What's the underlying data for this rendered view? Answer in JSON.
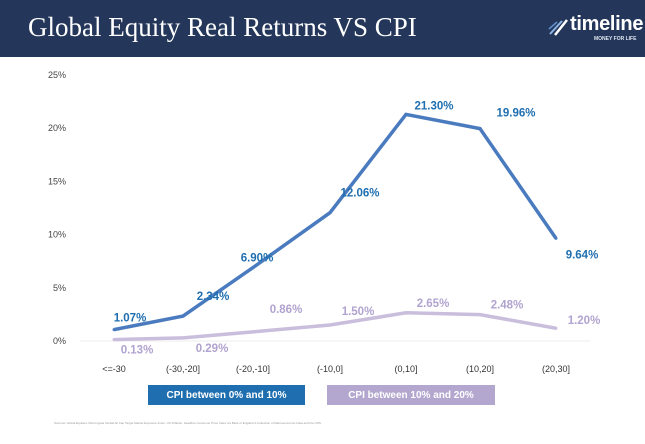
{
  "header": {
    "title": "Global Equity Real Returns VS CPI",
    "logo_word": "timeline",
    "logo_tagline": "MONEY FOR LIFE"
  },
  "colors": {
    "header_bg": "#24375a",
    "series1_line": "#4a7bbf",
    "series1_label": "#1f6fb0",
    "series2_line": "#c9bedc",
    "series2_label": "#b0a3cf"
  },
  "chart_data": {
    "type": "line",
    "categories": [
      "<=-30",
      "(-30,-20]",
      "(-20,-10]",
      "(-10,0]",
      "(0,10]",
      "(10,20]",
      "(20,30]"
    ],
    "y_ticks": [
      "0%",
      "5%",
      "10%",
      "15%",
      "20%",
      "25%"
    ],
    "ylim": [
      0,
      25
    ],
    "grid": false,
    "legend_position": "bottom",
    "series": [
      {
        "name": "CPI between 0% and 10%",
        "values": [
          1.07,
          2.34,
          6.9,
          12.06,
          21.3,
          19.96,
          9.64
        ],
        "labels": [
          "1.07%",
          "2.34%",
          "6.90%",
          "12.06%",
          "21.30%",
          "19.96%",
          "9.64%"
        ]
      },
      {
        "name": "CPI between 10% and 20%",
        "values": [
          0.13,
          0.29,
          0.86,
          1.5,
          2.65,
          2.48,
          1.2
        ],
        "labels": [
          "0.13%",
          "0.29%",
          "0.86%",
          "1.50%",
          "2.65%",
          "2.48%",
          "1.20%"
        ]
      }
    ]
  },
  "footnote": "Sources: Global Equities: Morningstar Global All Cap Target Market Exposure Index. UK Inflation: Headline Consumer Price Index via Bank of England A Collection of Macroeconomic Data and the ONS"
}
